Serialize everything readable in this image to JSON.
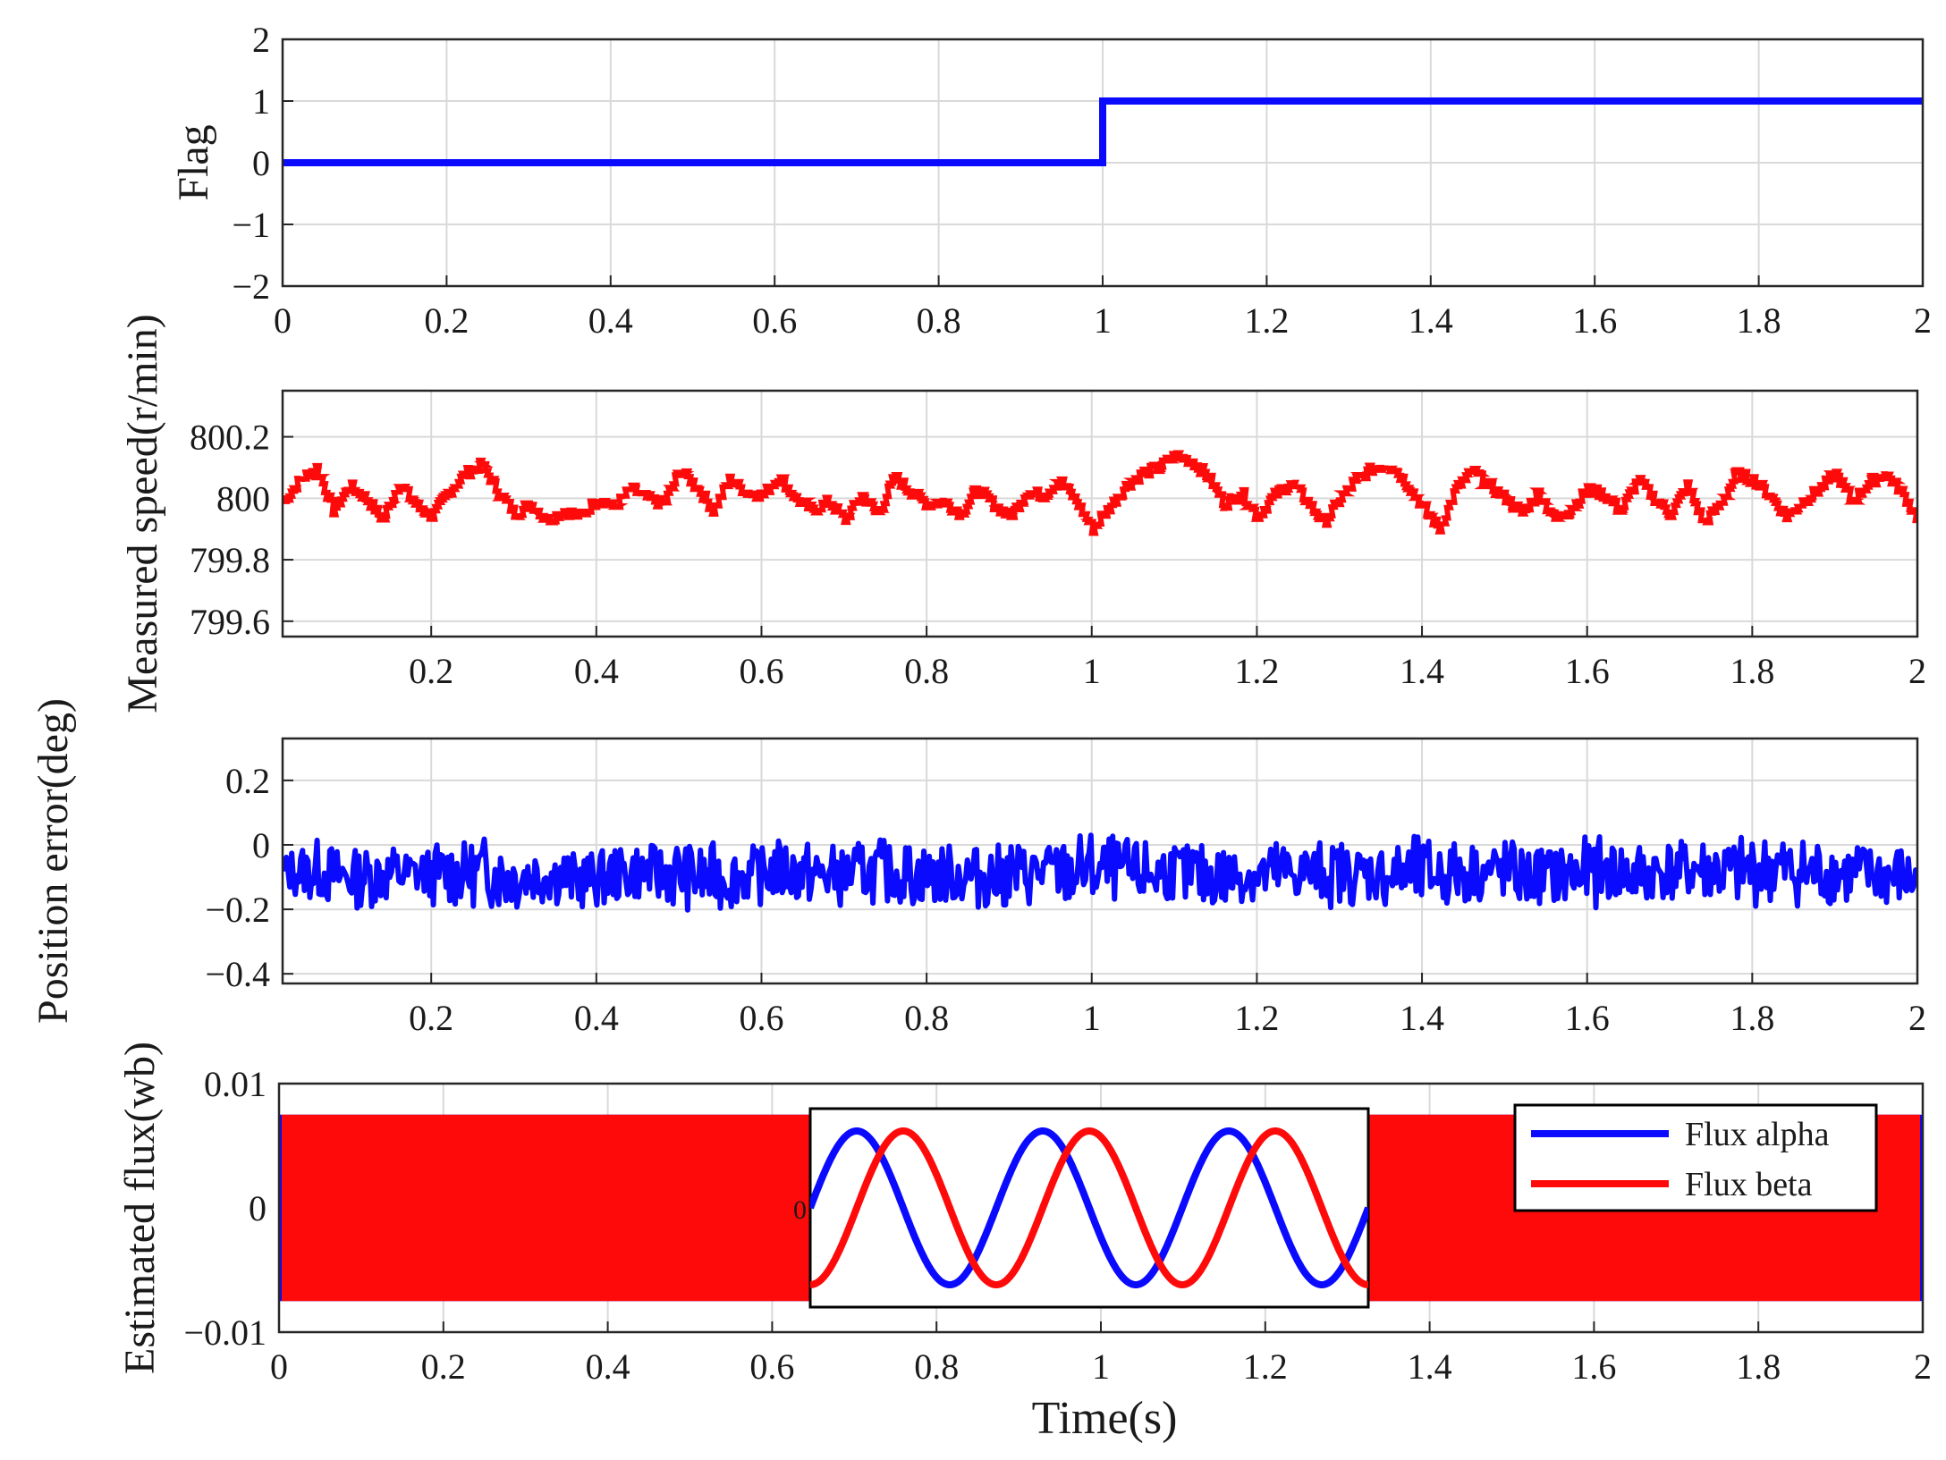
{
  "figure": {
    "xlabel": "Time(s)"
  },
  "colors": {
    "blue": "#0a0aff",
    "red": "#ff0a0a",
    "grid": "#d9d9d9",
    "axis": "#262626"
  },
  "chart_data": [
    {
      "id": "flag",
      "type": "line",
      "title": "",
      "ylabel": "Flag",
      "xlabel": "",
      "xlim": [
        0,
        2
      ],
      "ylim": [
        -2,
        2
      ],
      "xticks": [
        0,
        0.2,
        0.4,
        0.6,
        0.8,
        1,
        1.2,
        1.4,
        1.6,
        1.8,
        2
      ],
      "xtick_labels": [
        "0",
        "0.2",
        "0.4",
        "0.6",
        "0.8",
        "1",
        "1.2",
        "1.4",
        "1.6",
        "1.8",
        "2"
      ],
      "yticks": [
        -2,
        -1,
        0,
        1,
        2
      ],
      "ytick_labels": [
        "−2",
        "−1",
        "0",
        "1",
        "2"
      ],
      "grid": true,
      "series": [
        {
          "color": "blue",
          "x": [
            0,
            1,
            1,
            2
          ],
          "y": [
            0,
            0,
            1,
            1
          ]
        }
      ]
    },
    {
      "id": "speed",
      "type": "line",
      "title": "",
      "ylabel": "Measured speed(r/min)",
      "xlabel": "",
      "xlim": [
        0.02,
        2
      ],
      "ylim": [
        799.55,
        800.35
      ],
      "xticks": [
        0.2,
        0.4,
        0.6,
        0.8,
        1,
        1.2,
        1.4,
        1.6,
        1.8,
        2
      ],
      "xtick_labels": [
        "0.2",
        "0.4",
        "0.6",
        "0.8",
        "1",
        "1.2",
        "1.4",
        "1.6",
        "1.8",
        "2"
      ],
      "yticks": [
        799.6,
        799.8,
        800,
        800.2
      ],
      "ytick_labels": [
        "799.6",
        "799.8",
        "800",
        "800.2"
      ],
      "grid": true,
      "series": [
        {
          "color": "red",
          "x": [
            0.02,
            0.04,
            0.06,
            0.08,
            0.1,
            0.12,
            0.14,
            0.16,
            0.18,
            0.2,
            0.22,
            0.24,
            0.26,
            0.28,
            0.3,
            0.32,
            0.34,
            0.36,
            0.38,
            0.4,
            0.42,
            0.44,
            0.46,
            0.48,
            0.5,
            0.52,
            0.54,
            0.56,
            0.58,
            0.6,
            0.62,
            0.64,
            0.66,
            0.68,
            0.7,
            0.72,
            0.74,
            0.76,
            0.78,
            0.8,
            0.82,
            0.84,
            0.86,
            0.88,
            0.9,
            0.92,
            0.94,
            0.96,
            0.98,
            1,
            1.02,
            1.04,
            1.06,
            1.08,
            1.1,
            1.12,
            1.14,
            1.16,
            1.18,
            1.2,
            1.22,
            1.24,
            1.26,
            1.28,
            1.3,
            1.32,
            1.34,
            1.36,
            1.38,
            1.4,
            1.42,
            1.44,
            1.46,
            1.48,
            1.5,
            1.52,
            1.54,
            1.56,
            1.58,
            1.6,
            1.62,
            1.64,
            1.66,
            1.68,
            1.7,
            1.72,
            1.74,
            1.76,
            1.78,
            1.8,
            1.82,
            1.84,
            1.86,
            1.88,
            1.9,
            1.92,
            1.94,
            1.96,
            1.98,
            2
          ],
          "y": [
            799.99,
            800.06,
            800.1,
            799.96,
            800.04,
            800.0,
            799.93,
            800.05,
            799.98,
            799.94,
            800.02,
            800.08,
            800.11,
            800.02,
            799.95,
            799.98,
            799.93,
            799.96,
            799.94,
            800.0,
            799.97,
            800.03,
            800.0,
            799.98,
            800.09,
            800.04,
            799.96,
            800.06,
            800.02,
            800.01,
            800.07,
            800.0,
            799.96,
            799.99,
            799.93,
            800.01,
            799.95,
            800.07,
            800.02,
            799.98,
            799.99,
            799.95,
            800.03,
            799.98,
            799.94,
            800.02,
            800.01,
            800.06,
            799.99,
            799.9,
            799.97,
            800.04,
            800.08,
            800.1,
            800.14,
            800.12,
            800.07,
            799.98,
            800.02,
            799.94,
            800.01,
            800.05,
            799.99,
            799.92,
            800.0,
            800.06,
            800.1,
            800.11,
            800.05,
            799.97,
            799.9,
            800.03,
            800.09,
            800.04,
            800.0,
            799.95,
            800.02,
            799.93,
            799.97,
            800.03,
            800.01,
            799.96,
            800.06,
            800.0,
            799.95,
            800.04,
            799.92,
            799.98,
            800.08,
            800.06,
            800.01,
            799.94,
            799.99,
            800.03,
            800.08,
            799.99,
            800.05,
            800.08,
            800.02,
            799.93
          ]
        }
      ]
    },
    {
      "id": "position_error",
      "type": "line",
      "title": "",
      "ylabel": "Position error(deg)",
      "xlabel": "",
      "xlim": [
        0.02,
        2
      ],
      "ylim": [
        -0.43,
        0.33
      ],
      "xticks": [
        0.2,
        0.4,
        0.6,
        0.8,
        1,
        1.2,
        1.4,
        1.6,
        1.8,
        2
      ],
      "xtick_labels": [
        "0.2",
        "0.4",
        "0.6",
        "0.8",
        "1",
        "1.2",
        "1.4",
        "1.6",
        "1.8",
        "2"
      ],
      "yticks": [
        -0.4,
        -0.2,
        0,
        0.2
      ],
      "ytick_labels": [
        "−0.4",
        "−0.2",
        "0",
        "0.2"
      ],
      "grid": true,
      "series": [
        {
          "color": "blue",
          "band": "noise between -0.21 and 0.05, centred near -0.08",
          "x": [
            0.02,
            0.06,
            0.1,
            0.14,
            0.18,
            0.22,
            0.26,
            0.3,
            0.34,
            0.38,
            0.42,
            0.46,
            0.5,
            0.54,
            0.58,
            0.62,
            0.66,
            0.7,
            0.74,
            0.78,
            0.82,
            0.86,
            0.9,
            0.94,
            0.98,
            1.02,
            1.06,
            1.1,
            1.14,
            1.18,
            1.22,
            1.26,
            1.3,
            1.34,
            1.38,
            1.42,
            1.46,
            1.5,
            1.54,
            1.58,
            1.62,
            1.66,
            1.7,
            1.74,
            1.78,
            1.82,
            1.86,
            1.9,
            1.94,
            1.98,
            2
          ],
          "y_max": [
            -0.02,
            0.02,
            0.0,
            0.01,
            -0.01,
            0.02,
            0.03,
            0.01,
            0.0,
            -0.01,
            0.0,
            0.01,
            0.02,
            0.01,
            -0.01,
            0.02,
            0.01,
            0.0,
            0.02,
            0.01,
            0.0,
            0.01,
            0.02,
            0.01,
            0.04,
            0.03,
            0.02,
            0.01,
            0.02,
            0.0,
            0.02,
            0.01,
            0.02,
            0.0,
            0.03,
            0.02,
            0.01,
            0.02,
            0.0,
            0.02,
            0.03,
            0.01,
            0.02,
            0.04,
            0.02,
            0.05,
            0.03,
            0.02,
            0.01,
            0.0,
            -0.05
          ],
          "y_min": [
            -0.15,
            -0.18,
            -0.2,
            -0.19,
            -0.17,
            -0.2,
            -0.19,
            -0.21,
            -0.18,
            -0.2,
            -0.19,
            -0.18,
            -0.2,
            -0.21,
            -0.19,
            -0.18,
            -0.2,
            -0.19,
            -0.18,
            -0.2,
            -0.19,
            -0.2,
            -0.21,
            -0.18,
            -0.2,
            -0.19,
            -0.2,
            -0.18,
            -0.21,
            -0.19,
            -0.2,
            -0.18,
            -0.2,
            -0.19,
            -0.21,
            -0.2,
            -0.18,
            -0.19,
            -0.2,
            -0.21,
            -0.19,
            -0.2,
            -0.18,
            -0.19,
            -0.2,
            -0.19,
            -0.21,
            -0.2,
            -0.19,
            -0.21,
            -0.18
          ]
        }
      ]
    },
    {
      "id": "flux",
      "type": "line",
      "title": "",
      "ylabel": "Estimated flux(wb)",
      "xlabel": "Time(s)",
      "xlim": [
        0,
        2
      ],
      "ylim": [
        -0.01,
        0.01
      ],
      "xticks": [
        0,
        0.2,
        0.4,
        0.6,
        0.8,
        1,
        1.2,
        1.4,
        1.6,
        1.8,
        2
      ],
      "xtick_labels": [
        "0",
        "0.2",
        "0.4",
        "0.6",
        "0.8",
        "1",
        "1.2",
        "1.4",
        "1.6",
        "1.8",
        "2"
      ],
      "yticks": [
        -0.01,
        0,
        0.01
      ],
      "ytick_labels": [
        "−0.01",
        "0",
        "0.01"
      ],
      "grid": true,
      "amplitude": 0.0075,
      "legend": {
        "position": "top-right",
        "entries": [
          "Flux alpha",
          "Flux beta"
        ]
      },
      "series": [
        {
          "name": "Flux alpha",
          "color": "blue"
        },
        {
          "name": "Flux beta",
          "color": "red"
        }
      ],
      "inset": {
        "ytick_labels": [
          "0"
        ],
        "cycles": 3,
        "phase_shift_deg": 90,
        "series": [
          {
            "name": "Flux alpha",
            "color": "blue"
          },
          {
            "name": "Flux beta",
            "color": "red"
          }
        ]
      }
    }
  ]
}
